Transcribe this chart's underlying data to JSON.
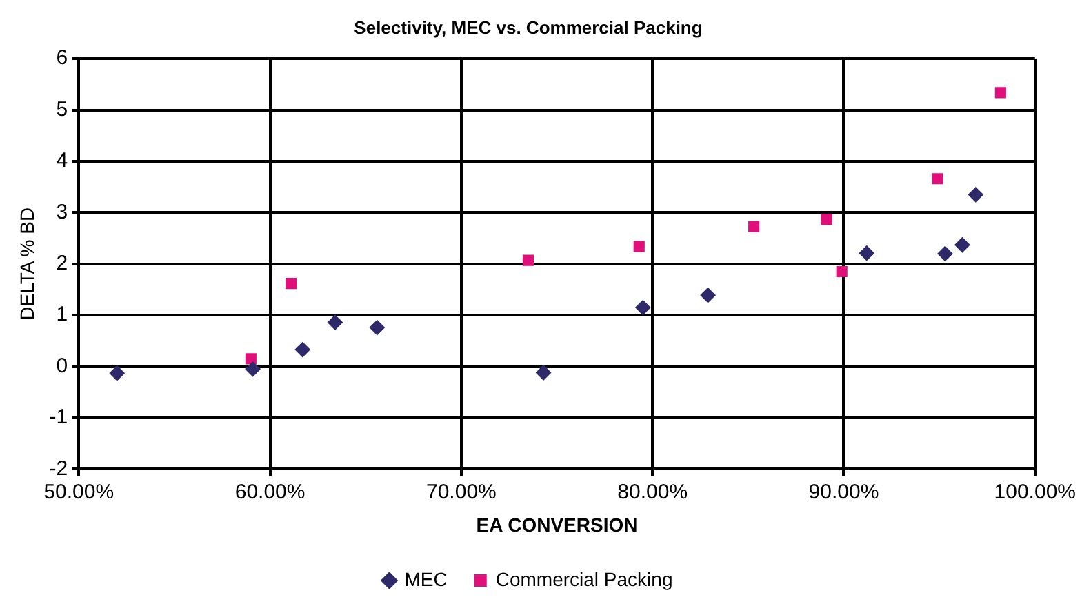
{
  "chart_data": {
    "type": "scatter",
    "title": "Selectivity, MEC vs. Commercial Packing",
    "xlabel": "EA CONVERSION",
    "ylabel": "DELTA % BD",
    "xlim": [
      50,
      100
    ],
    "xticks": [
      {
        "value": 50,
        "label": "50.00%"
      },
      {
        "value": 60,
        "label": "60.00%"
      },
      {
        "value": 70,
        "label": "70.00%"
      },
      {
        "value": 80,
        "label": "80.00%"
      },
      {
        "value": 90,
        "label": "90.00%"
      },
      {
        "value": 100,
        "label": "100.00%"
      }
    ],
    "ylim": [
      -2,
      6
    ],
    "yticks": [
      -2,
      -1,
      0,
      1,
      2,
      3,
      4,
      5,
      6
    ],
    "grid": true,
    "legend": "bottom",
    "series": [
      {
        "name": "MEC",
        "color": "#2e2a6a",
        "marker": "diamond",
        "x": [
          52.0,
          59.1,
          61.7,
          63.4,
          65.6,
          74.3,
          79.5,
          82.9,
          91.2,
          95.3,
          96.2,
          96.9
        ],
        "values": [
          -0.13,
          -0.05,
          0.33,
          0.86,
          0.76,
          -0.12,
          1.15,
          1.39,
          2.21,
          2.2,
          2.37,
          3.35
        ]
      },
      {
        "name": "Commercial Packing",
        "color": "#e0107a",
        "marker": "square",
        "x": [
          59.0,
          61.1,
          73.5,
          79.3,
          85.3,
          89.1,
          89.9,
          94.9,
          98.2
        ],
        "values": [
          0.15,
          1.62,
          2.07,
          2.34,
          2.73,
          2.87,
          1.85,
          3.66,
          5.34
        ]
      }
    ]
  }
}
